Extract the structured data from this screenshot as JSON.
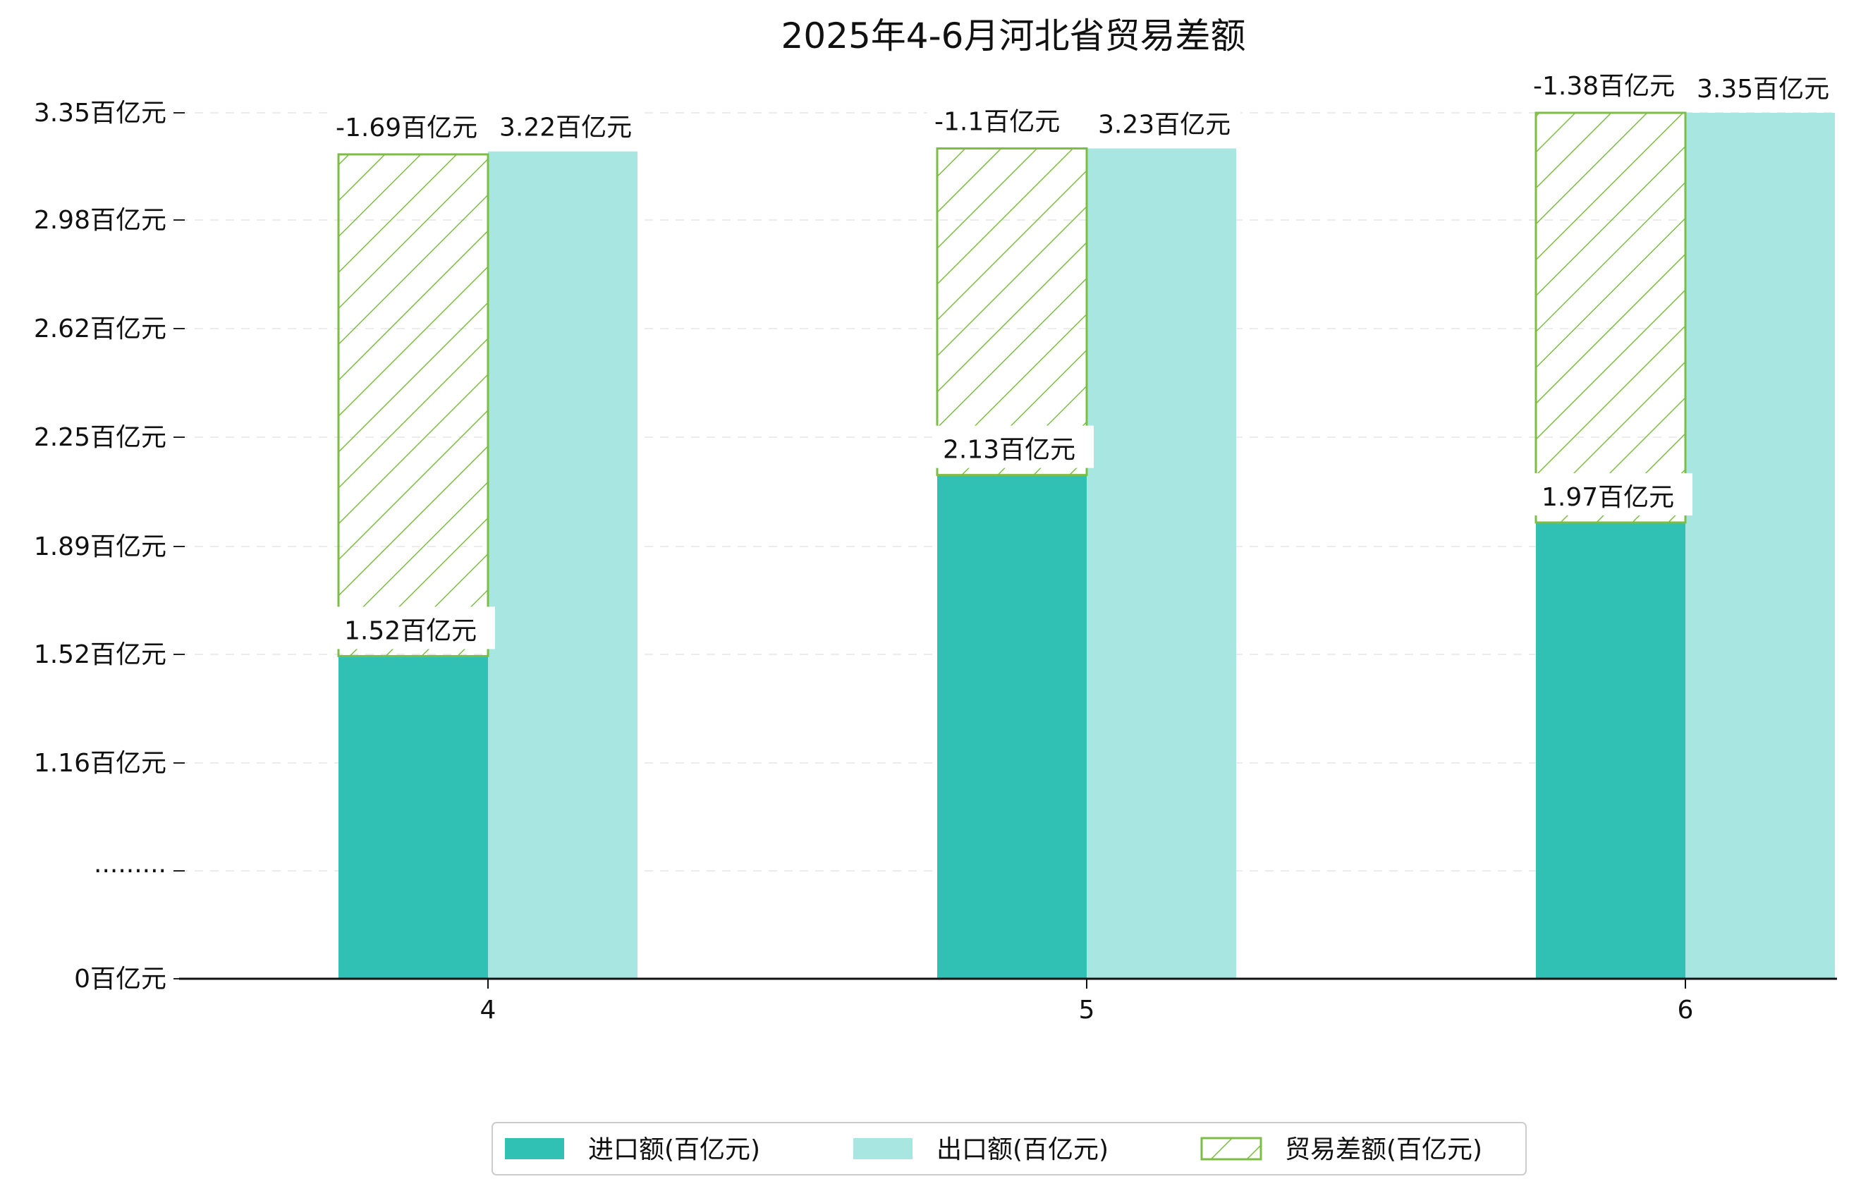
{
  "chart_data": {
    "type": "bar",
    "title": "2025年4-6月河北省贸易差额",
    "categories": [
      "4",
      "5",
      "6"
    ],
    "series": [
      {
        "name": "进口额(百亿元)",
        "values": [
          1.52,
          2.13,
          1.97
        ],
        "color": "#31c0b4",
        "labels": [
          "1.52百亿元",
          "2.13百亿元",
          "1.97百亿元"
        ]
      },
      {
        "name": "出口额(百亿元)",
        "values": [
          3.22,
          3.23,
          3.35
        ],
        "color": "#a8e7e1",
        "labels": [
          "3.22百亿元",
          "3.23百亿元",
          "3.35百亿元"
        ]
      },
      {
        "name": "贸易差额(百亿元)",
        "values": [
          -1.69,
          -1.1,
          -1.38
        ],
        "color": "#7cbd44",
        "pattern": "hatch",
        "labels": [
          "-1.69百亿元",
          "-1.1百亿元",
          "-1.38百亿元"
        ]
      }
    ],
    "y_ticks": [
      {
        "label": "0百亿元"
      },
      {
        "label": "·········"
      },
      {
        "label": "1.16百亿元"
      },
      {
        "label": "1.52百亿元"
      },
      {
        "label": "1.89百亿元"
      },
      {
        "label": "2.25百亿元"
      },
      {
        "label": "2.62百亿元"
      },
      {
        "label": "2.98百亿元"
      },
      {
        "label": "3.35百亿元"
      }
    ],
    "ylim": [
      0,
      3.35
    ],
    "axis_break": true,
    "grid": true,
    "legend_position": "bottom-center"
  }
}
